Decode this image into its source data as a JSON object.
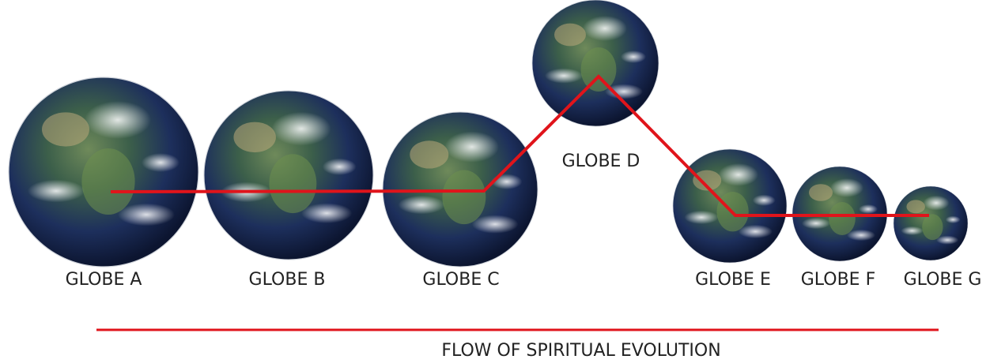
{
  "nodes": [
    {
      "label": "GLOBE A"
    },
    {
      "label": "GLOBE B"
    },
    {
      "label": "GLOBE C"
    },
    {
      "label": "GLOBE D"
    },
    {
      "label": "GLOBE E"
    },
    {
      "label": "GLOBE F"
    },
    {
      "label": "GLOBE G"
    }
  ],
  "caption": "FLOW OF SPIRITUAL EVOLUTION"
}
